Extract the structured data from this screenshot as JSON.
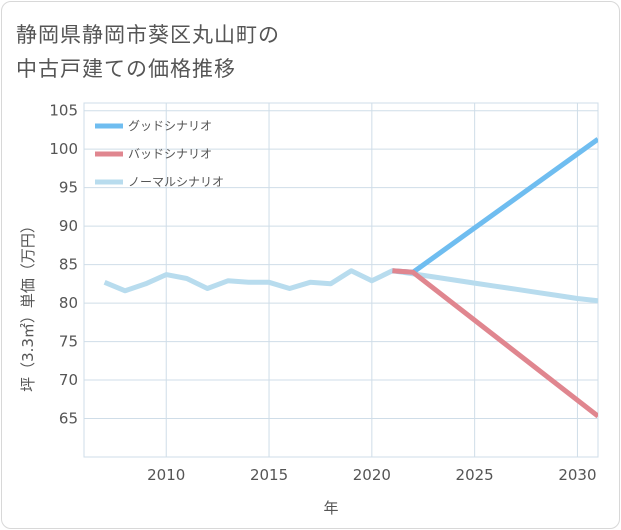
{
  "title_lines": [
    "静岡県静岡市葵区丸山町の",
    "中古戸建ての価格推移"
  ],
  "chart_data": {
    "type": "line",
    "xlabel": "年",
    "ylabel": "坪（3.3㎡）単価（万円）",
    "xlim": [
      2006,
      2031
    ],
    "ylim": [
      60,
      106
    ],
    "xticks": [
      2010,
      2015,
      2020,
      2025,
      2030
    ],
    "yticks": [
      65,
      70,
      75,
      80,
      85,
      90,
      95,
      100,
      105
    ],
    "grid": true,
    "legend_position": "top-left",
    "series": [
      {
        "name": "グッドシナリオ",
        "color": "#6fbdf0",
        "x": [
          2021,
          2022,
          2031
        ],
        "y": [
          84.2,
          84.0,
          101.3
        ]
      },
      {
        "name": "バッドシナリオ",
        "color": "#e0868f",
        "x": [
          2021,
          2022,
          2031
        ],
        "y": [
          84.2,
          84.0,
          65.3
        ]
      },
      {
        "name": "ノーマルシナリオ",
        "color": "#b8dcee",
        "x": [
          2007,
          2008,
          2009,
          2010,
          2011,
          2012,
          2013,
          2014,
          2015,
          2016,
          2017,
          2018,
          2019,
          2020,
          2021,
          2022,
          2023,
          2024,
          2025,
          2026,
          2027,
          2028,
          2029,
          2030,
          2031
        ],
        "y": [
          82.7,
          81.6,
          82.5,
          83.7,
          83.2,
          81.9,
          82.9,
          82.7,
          82.7,
          81.9,
          82.7,
          82.5,
          84.2,
          82.9,
          84.2,
          83.8,
          83.4,
          83.0,
          82.6,
          82.2,
          81.8,
          81.4,
          81.0,
          80.6,
          80.3
        ]
      }
    ]
  }
}
